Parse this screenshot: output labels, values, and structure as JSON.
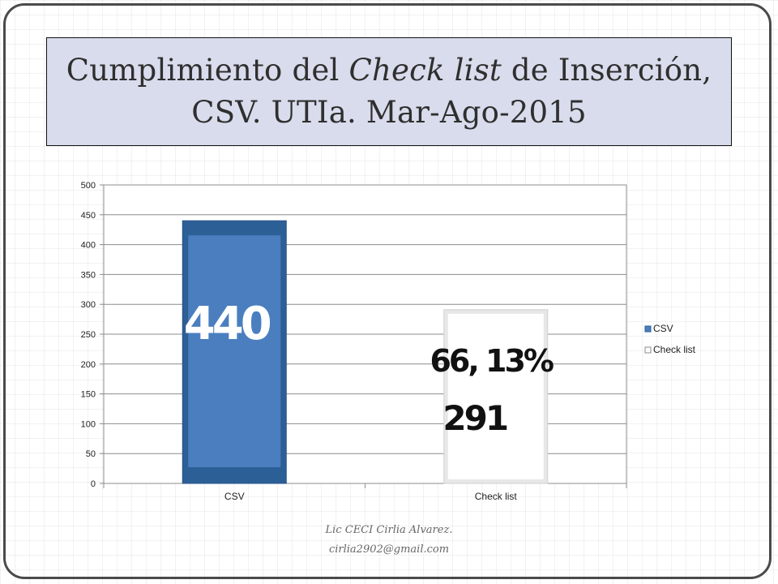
{
  "title": {
    "part1": "Cumplimiento del ",
    "emphasis": "Check list",
    "part2": " de Inserción, CSV. UTIa. Mar-Ago-2015"
  },
  "chart_data": {
    "type": "bar",
    "categories": [
      "CSV",
      "Check list"
    ],
    "values": [
      440,
      291
    ],
    "ylim": [
      0,
      500
    ],
    "yticks": [
      "0",
      "50",
      "100",
      "150",
      "200",
      "250",
      "300",
      "350",
      "400",
      "450",
      "500"
    ],
    "grid": true,
    "legend": {
      "position": "right",
      "entries": [
        "CSV",
        "Check list"
      ]
    },
    "annotations": [
      {
        "category": "CSV",
        "text": "440"
      },
      {
        "category": "Check list",
        "text": "66, 13%"
      },
      {
        "category": "Check list",
        "text": "291"
      }
    ],
    "colors": {
      "CSV": "#4a7ebf",
      "CSV_border": "#2d5f97",
      "Check list": "#ffffff",
      "Check list_border": "#d0d0d0"
    }
  },
  "footer": {
    "line1": "Lic CECI Cirlia Alvarez.",
    "line2": "cirlia2902@gmail.com"
  }
}
